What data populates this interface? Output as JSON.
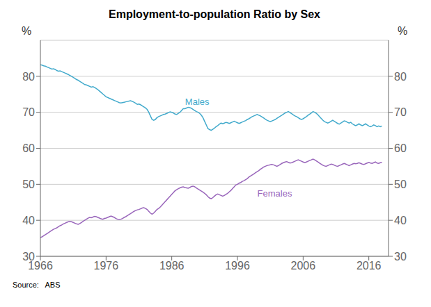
{
  "chart_data": {
    "type": "line",
    "title": "Employment-to-population Ratio by Sex",
    "y_label": "%",
    "y2_label": "%",
    "source": "Source:   ABS",
    "grid": true,
    "xlim": [
      1966,
      2019
    ],
    "xticks": [
      1966,
      1976,
      1986,
      1996,
      2006,
      2016
    ],
    "ylim": [
      30,
      90
    ],
    "yticks": [
      30,
      40,
      50,
      60,
      70,
      80
    ],
    "y2lim": [
      30,
      90
    ],
    "y2ticks": [
      30,
      40,
      50,
      60,
      70,
      80
    ],
    "annotations": [
      {
        "text": "Males",
        "x": 1987.5,
        "y": 73.0,
        "color": "#42AACC"
      },
      {
        "text": "Females",
        "x": 1998.5,
        "y": 47.5,
        "color": "#9966BB"
      }
    ],
    "x": [
      1966.0,
      1966.25,
      1966.5,
      1966.75,
      1967.0,
      1967.25,
      1967.5,
      1967.75,
      1968.0,
      1968.25,
      1968.5,
      1968.75,
      1969.0,
      1969.25,
      1969.5,
      1969.75,
      1970.0,
      1970.25,
      1970.5,
      1970.75,
      1971.0,
      1971.25,
      1971.5,
      1971.75,
      1972.0,
      1972.25,
      1972.5,
      1972.75,
      1973.0,
      1973.25,
      1973.5,
      1973.75,
      1974.0,
      1974.25,
      1974.5,
      1974.75,
      1975.0,
      1975.25,
      1975.5,
      1975.75,
      1976.0,
      1976.25,
      1976.5,
      1976.75,
      1977.0,
      1977.25,
      1977.5,
      1977.75,
      1978.0,
      1978.25,
      1978.5,
      1978.75,
      1979.0,
      1979.25,
      1979.5,
      1979.75,
      1980.0,
      1980.25,
      1980.5,
      1980.75,
      1981.0,
      1981.25,
      1981.5,
      1981.75,
      1982.0,
      1982.25,
      1982.5,
      1982.75,
      1983.0,
      1983.25,
      1983.5,
      1983.75,
      1984.0,
      1984.25,
      1984.5,
      1984.75,
      1985.0,
      1985.25,
      1985.5,
      1985.75,
      1986.0,
      1986.25,
      1986.5,
      1986.75,
      1987.0,
      1987.25,
      1987.5,
      1987.75,
      1988.0,
      1988.25,
      1988.5,
      1988.75,
      1989.0,
      1989.25,
      1989.5,
      1989.75,
      1990.0,
      1990.25,
      1990.5,
      1990.75,
      1991.0,
      1991.25,
      1991.5,
      1991.75,
      1992.0,
      1992.25,
      1992.5,
      1992.75,
      1993.0,
      1993.25,
      1993.5,
      1993.75,
      1994.0,
      1994.25,
      1994.5,
      1994.75,
      1995.0,
      1995.25,
      1995.5,
      1995.75,
      1996.0,
      1996.25,
      1996.5,
      1996.75,
      1997.0,
      1997.25,
      1997.5,
      1997.75,
      1998.0,
      1998.25,
      1998.5,
      1998.75,
      1999.0,
      1999.25,
      1999.5,
      1999.75,
      2000.0,
      2000.25,
      2000.5,
      2000.75,
      2001.0,
      2001.25,
      2001.5,
      2001.75,
      2002.0,
      2002.25,
      2002.5,
      2002.75,
      2003.0,
      2003.25,
      2003.5,
      2003.75,
      2004.0,
      2004.25,
      2004.5,
      2004.75,
      2005.0,
      2005.25,
      2005.5,
      2005.75,
      2006.0,
      2006.25,
      2006.5,
      2006.75,
      2007.0,
      2007.25,
      2007.5,
      2007.75,
      2008.0,
      2008.25,
      2008.5,
      2008.75,
      2009.0,
      2009.25,
      2009.5,
      2009.75,
      2010.0,
      2010.25,
      2010.5,
      2010.75,
      2011.0,
      2011.25,
      2011.5,
      2011.75,
      2012.0,
      2012.25,
      2012.5,
      2012.75,
      2013.0,
      2013.25,
      2013.5,
      2013.75,
      2014.0,
      2014.25,
      2014.5,
      2014.75,
      2015.0,
      2015.25,
      2015.5,
      2015.75,
      2016.0,
      2016.25,
      2016.5,
      2016.75,
      2017.0,
      2017.25,
      2017.5,
      2017.75,
      2018.0
    ],
    "series": [
      {
        "name": "Males",
        "color": "#42AACC",
        "values": [
          83.2,
          83.1,
          82.9,
          82.8,
          82.6,
          82.4,
          82.2,
          82.0,
          82.1,
          81.9,
          81.6,
          81.4,
          81.5,
          81.3,
          81.1,
          80.9,
          80.7,
          80.5,
          80.2,
          80.0,
          79.7,
          79.4,
          79.1,
          78.9,
          78.6,
          78.3,
          78.0,
          77.7,
          77.6,
          77.4,
          77.2,
          77.0,
          77.1,
          76.9,
          76.6,
          76.3,
          75.9,
          75.5,
          75.1,
          74.7,
          74.3,
          74.1,
          73.9,
          73.7,
          73.5,
          73.3,
          73.1,
          72.9,
          72.7,
          72.6,
          72.7,
          72.8,
          72.9,
          73.0,
          73.1,
          73.2,
          73.0,
          72.8,
          72.5,
          72.2,
          72.3,
          72.1,
          71.8,
          71.5,
          71.2,
          70.8,
          70.0,
          69.0,
          68.0,
          67.8,
          68.0,
          68.5,
          68.8,
          69.0,
          69.2,
          69.4,
          69.5,
          69.7,
          69.9,
          70.1,
          70.0,
          69.8,
          69.5,
          69.4,
          69.7,
          70.0,
          70.5,
          71.0,
          71.0,
          71.2,
          71.4,
          71.3,
          71.1,
          70.8,
          70.5,
          70.2,
          70.0,
          69.7,
          69.2,
          68.5,
          67.5,
          66.5,
          65.5,
          65.2,
          65.0,
          65.3,
          65.6,
          66.0,
          66.3,
          66.7,
          67.0,
          66.8,
          67.0,
          67.2,
          67.1,
          66.9,
          67.1,
          67.3,
          67.5,
          67.3,
          67.1,
          66.9,
          67.1,
          67.3,
          67.5,
          67.7,
          68.0,
          68.2,
          68.5,
          68.8,
          69.0,
          69.2,
          69.4,
          69.2,
          69.0,
          68.7,
          68.4,
          68.1,
          67.8,
          67.6,
          67.4,
          67.6,
          67.8,
          68.0,
          68.3,
          68.6,
          68.9,
          69.2,
          69.5,
          69.8,
          70.0,
          70.2,
          69.9,
          69.6,
          69.3,
          69.0,
          68.8,
          68.5,
          68.2,
          68.0,
          68.2,
          68.5,
          68.8,
          69.2,
          69.5,
          69.8,
          70.2,
          70.0,
          69.7,
          69.3,
          68.8,
          68.3,
          67.8,
          67.4,
          67.2,
          67.0,
          67.2,
          67.5,
          67.8,
          67.5,
          67.2,
          66.9,
          66.7,
          67.0,
          67.3,
          67.6,
          67.5,
          67.2,
          67.0,
          67.2,
          66.8,
          66.5,
          66.3,
          66.5,
          66.8,
          66.5,
          66.3,
          66.5,
          66.8,
          66.5,
          66.2,
          66.0,
          66.2,
          66.5,
          66.3,
          66.0,
          66.2,
          66.0,
          66.2
        ]
      },
      {
        "name": "Females",
        "color": "#9966BB",
        "values": [
          35.2,
          35.4,
          35.7,
          36.0,
          36.3,
          36.6,
          36.9,
          37.2,
          37.5,
          37.7,
          37.9,
          38.2,
          38.5,
          38.7,
          39.0,
          39.2,
          39.4,
          39.6,
          39.7,
          39.6,
          39.4,
          39.2,
          39.0,
          38.9,
          39.1,
          39.4,
          39.7,
          40.0,
          40.3,
          40.6,
          40.8,
          40.7,
          40.9,
          41.1,
          41.0,
          40.8,
          40.6,
          40.4,
          40.3,
          40.5,
          40.6,
          40.8,
          41.0,
          41.2,
          41.0,
          40.8,
          40.5,
          40.3,
          40.2,
          40.3,
          40.5,
          40.8,
          41.0,
          41.3,
          41.6,
          41.9,
          42.2,
          42.5,
          42.7,
          42.9,
          43.0,
          43.2,
          43.4,
          43.5,
          43.3,
          43.0,
          42.5,
          42.0,
          41.7,
          42.0,
          42.5,
          43.0,
          43.3,
          43.7,
          44.2,
          44.7,
          45.2,
          45.7,
          46.2,
          46.7,
          47.2,
          47.7,
          48.2,
          48.5,
          48.8,
          49.0,
          49.2,
          49.3,
          49.1,
          49.0,
          48.9,
          49.1,
          49.4,
          49.5,
          49.3,
          49.0,
          48.7,
          48.4,
          48.1,
          47.8,
          47.5,
          47.1,
          46.6,
          46.2,
          46.0,
          46.3,
          46.7,
          47.1,
          47.3,
          47.1,
          46.9,
          46.7,
          46.9,
          47.2,
          47.5,
          47.9,
          48.3,
          48.8,
          49.3,
          49.8,
          50.0,
          50.3,
          50.5,
          50.8,
          51.0,
          51.3,
          51.6,
          52.0,
          52.3,
          52.6,
          52.9,
          53.2,
          53.5,
          53.8,
          54.2,
          54.5,
          54.8,
          55.0,
          55.2,
          55.3,
          55.4,
          55.5,
          55.4,
          55.2,
          55.0,
          55.2,
          55.5,
          55.8,
          56.0,
          56.2,
          56.3,
          56.1,
          55.9,
          56.0,
          56.2,
          56.4,
          56.6,
          56.8,
          56.6,
          56.4,
          56.2,
          56.0,
          56.2,
          56.4,
          56.6,
          56.8,
          57.0,
          56.8,
          56.5,
          56.2,
          55.9,
          55.6,
          55.3,
          55.1,
          55.0,
          55.2,
          55.4,
          55.6,
          55.5,
          55.3,
          55.1,
          55.0,
          55.2,
          55.4,
          55.6,
          55.8,
          55.6,
          55.4,
          55.2,
          55.4,
          55.6,
          55.8,
          55.7,
          55.8,
          56.0,
          55.8,
          55.6,
          55.5,
          55.7,
          55.9,
          56.1,
          55.9,
          55.8,
          56.0,
          56.2,
          55.9,
          55.8,
          56.0,
          56.1
        ]
      }
    ]
  }
}
